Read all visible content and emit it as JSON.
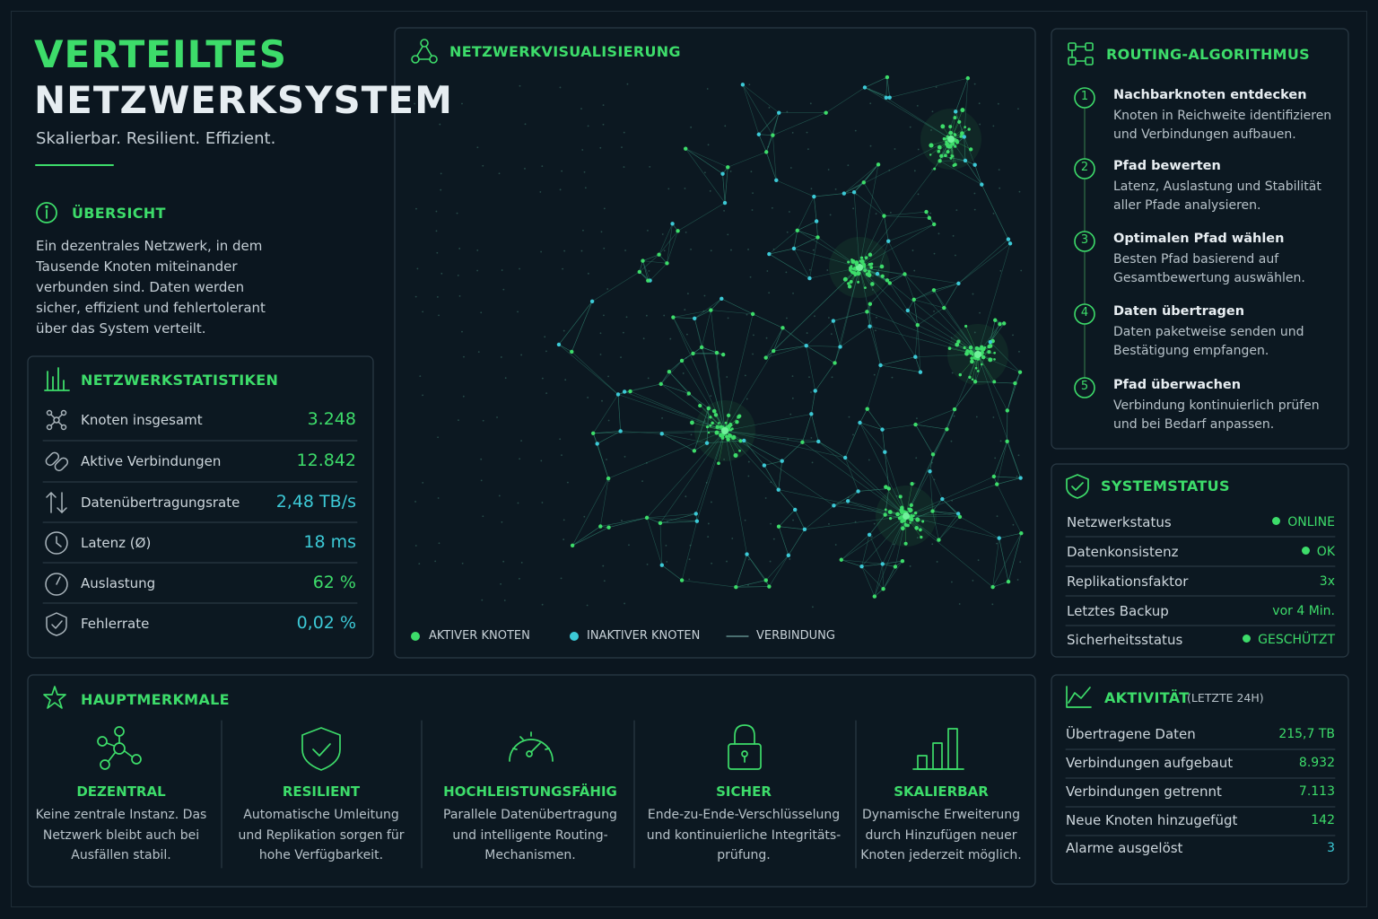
{
  "header": {
    "title_line1": "VERTEILTES",
    "title_line2": "NETZWERKSYSTEM",
    "tagline": "Skalierbar. Resilient. Effizient."
  },
  "overview": {
    "title": "ÜBERSICHT",
    "text": "Ein dezentrales Netzwerk, in dem Tausende Knoten miteinander verbunden sind. Daten werden sicher, effizient und fehlertolerant über das System verteilt."
  },
  "stats": {
    "title": "NETZWERKSTATISTIKEN",
    "rows": [
      {
        "label": "Knoten insgesamt",
        "value": "3.248"
      },
      {
        "label": "Aktive Verbindungen",
        "value": "12.842"
      },
      {
        "label": "Datenübertragungsrate",
        "value": "2,48 TB/s"
      },
      {
        "label": "Latenz (Ø)",
        "value": "18 ms"
      },
      {
        "label": "Auslastung",
        "value": "62 %"
      },
      {
        "label": "Fehlerrate",
        "value": "0,02 %"
      }
    ]
  },
  "network": {
    "title": "NETZWERKVISUALISIERUNG",
    "legend": [
      "AKTIVER KNOTEN",
      "INAKTIVER KNOTEN",
      "VERBINDUNG"
    ]
  },
  "routing": {
    "title": "ROUTING-ALGORITHMUS",
    "steps": [
      {
        "number": "1",
        "title": "Nachbarknoten entdecken",
        "text": "Knoten in Reichweite identifizieren und Verbindungen aufbauen."
      },
      {
        "number": "2",
        "title": "Pfad bewerten",
        "text": "Latenz, Auslastung und Stabilität aller Pfade analysieren."
      },
      {
        "number": "3",
        "title": "Optimalen Pfad wählen",
        "text": "Besten Pfad basierend auf Gesamtbewertung auswählen."
      },
      {
        "number": "4",
        "title": "Daten übertragen",
        "text": "Daten paketweise senden und Bestätigung empfangen."
      },
      {
        "number": "5",
        "title": "Pfad überwachen",
        "text": "Verbindung kontinuierlich prüfen und bei Bedarf anpassen."
      }
    ]
  },
  "system_status": {
    "title": "SYSTEMSTATUS",
    "rows": [
      {
        "label": "Netzwerkstatus",
        "value": "ONLINE"
      },
      {
        "label": "Datenkonsistenz",
        "value": "OK"
      },
      {
        "label": "Replikationsfaktor",
        "value": "3x"
      },
      {
        "label": "Letztes Backup",
        "value": "vor 4 Min."
      },
      {
        "label": "Sicherheitsstatus",
        "value": "GESCHÜTZT"
      }
    ]
  },
  "features": {
    "title": "HAUPTMERKMALE",
    "items": [
      {
        "title": "DEZENTRAL",
        "text": "Keine zentrale Instanz. Das Netzwerk bleibt auch bei Ausfällen stabil."
      },
      {
        "title": "RESILIENT",
        "text": "Automatische Umleitung und Replikation sorgen für hohe Verfügbarkeit."
      },
      {
        "title": "HOCHLEISTUNGSFÄHIG",
        "text": "Parallele Datenübertragung und intelligente Routing-Mechanismen."
      },
      {
        "title": "SICHER",
        "text": "Ende-zu-Ende-Verschlüsselung und kontinuierliche Integritäts-prüfung."
      },
      {
        "title": "SKALIERBAR",
        "text": "Dynamische Erweiterung durch Hinzufügen neuer Knoten jederzeit möglich."
      }
    ]
  },
  "activity": {
    "title": "AKTIVITÄT",
    "subtitle": "(LETZTE 24H)",
    "rows": [
      {
        "label": "Übertragene Daten",
        "value": "215,7 TB"
      },
      {
        "label": "Verbindungen aufgebaut",
        "value": "8.932"
      },
      {
        "label": "Verbindungen getrennt",
        "value": "7.113"
      },
      {
        "label": "Neue Knoten hinzugefügt",
        "value": "142"
      },
      {
        "label": "Alarme ausgelöst",
        "value": "3"
      }
    ]
  }
}
